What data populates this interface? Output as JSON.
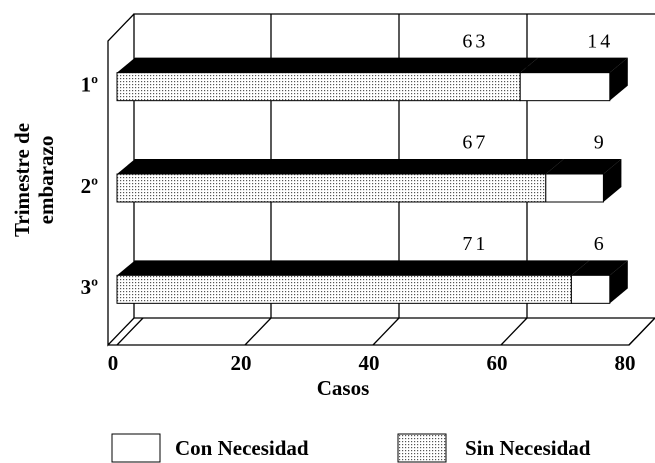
{
  "chart_data": {
    "type": "bar3d_stacked_horizontal",
    "categories": [
      "1º",
      "2º",
      "3º"
    ],
    "series": [
      {
        "name": "Sin Necesidad",
        "color": "#555555",
        "values": [
          63,
          67,
          71
        ]
      },
      {
        "name": "Con Necesidad",
        "color": "#ffffff",
        "values": [
          14,
          9,
          6
        ]
      }
    ],
    "xlim": [
      0,
      80
    ],
    "xticks": [
      0,
      20,
      40,
      60,
      80
    ],
    "grid": true,
    "xlabel": "Casos",
    "ylabel": [
      "Trimestre de",
      "embarazo"
    ],
    "legend": "bottom"
  }
}
